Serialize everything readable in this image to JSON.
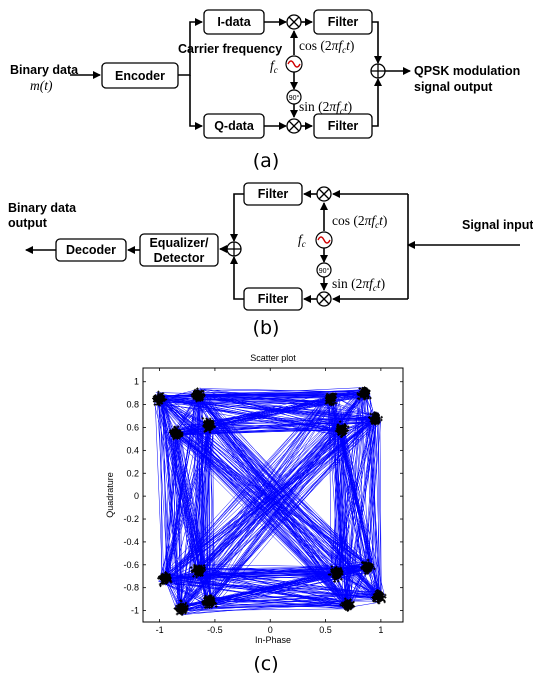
{
  "a": {
    "binary_data": "Binary data",
    "mt": "m(t)",
    "encoder": "Encoder",
    "i_data": "I-data",
    "q_data": "Q-data",
    "filter": "Filter",
    "carrier": "Carrier frequency",
    "fc": "f_c",
    "cos": "cos (2πf_c t)",
    "sin": "sin (2πf_c t)",
    "phase": "90°",
    "out1": "QPSK modulation",
    "out2": "signal output",
    "caption": "(a)"
  },
  "b": {
    "out1": "Binary data",
    "out2": "output",
    "decoder": "Decoder",
    "eq1": "Equalizer/",
    "eq2": "Detector",
    "filter": "Filter",
    "fc": "f_c",
    "cos": "cos (2πf_c t)",
    "sin": "sin (2πf_c t)",
    "phase": "90°",
    "signal_input": "Signal input",
    "caption": "(b)"
  },
  "c": {
    "caption": "(c)"
  },
  "chart_data": {
    "type": "scatter",
    "title": "Scatter plot",
    "xlabel": "In-Phase",
    "ylabel": "Quadrature",
    "xlim": [
      -1.15,
      1.2
    ],
    "ylim": [
      -1.1,
      1.12
    ],
    "xticks": [
      -1,
      -0.5,
      0,
      0.5,
      1
    ],
    "yticks": [
      -1,
      -0.8,
      -0.6,
      -0.4,
      -0.2,
      0,
      0.2,
      0.4,
      0.6,
      0.8,
      1
    ],
    "trajectory_color": "#0000ff",
    "point_color": "#000000",
    "clusters": [
      {
        "x": -1.0,
        "y": 0.85
      },
      {
        "x": -0.65,
        "y": 0.88
      },
      {
        "x": -0.85,
        "y": 0.55
      },
      {
        "x": -0.55,
        "y": 0.62
      },
      {
        "x": 0.55,
        "y": 0.85
      },
      {
        "x": 0.85,
        "y": 0.9
      },
      {
        "x": 0.65,
        "y": 0.58
      },
      {
        "x": 0.95,
        "y": 0.68
      },
      {
        "x": -0.95,
        "y": -0.72
      },
      {
        "x": -0.65,
        "y": -0.65
      },
      {
        "x": -0.8,
        "y": -0.98
      },
      {
        "x": -0.55,
        "y": -0.92
      },
      {
        "x": 0.6,
        "y": -0.68
      },
      {
        "x": 0.88,
        "y": -0.62
      },
      {
        "x": 0.7,
        "y": -0.95
      },
      {
        "x": 0.98,
        "y": -0.88
      }
    ]
  }
}
